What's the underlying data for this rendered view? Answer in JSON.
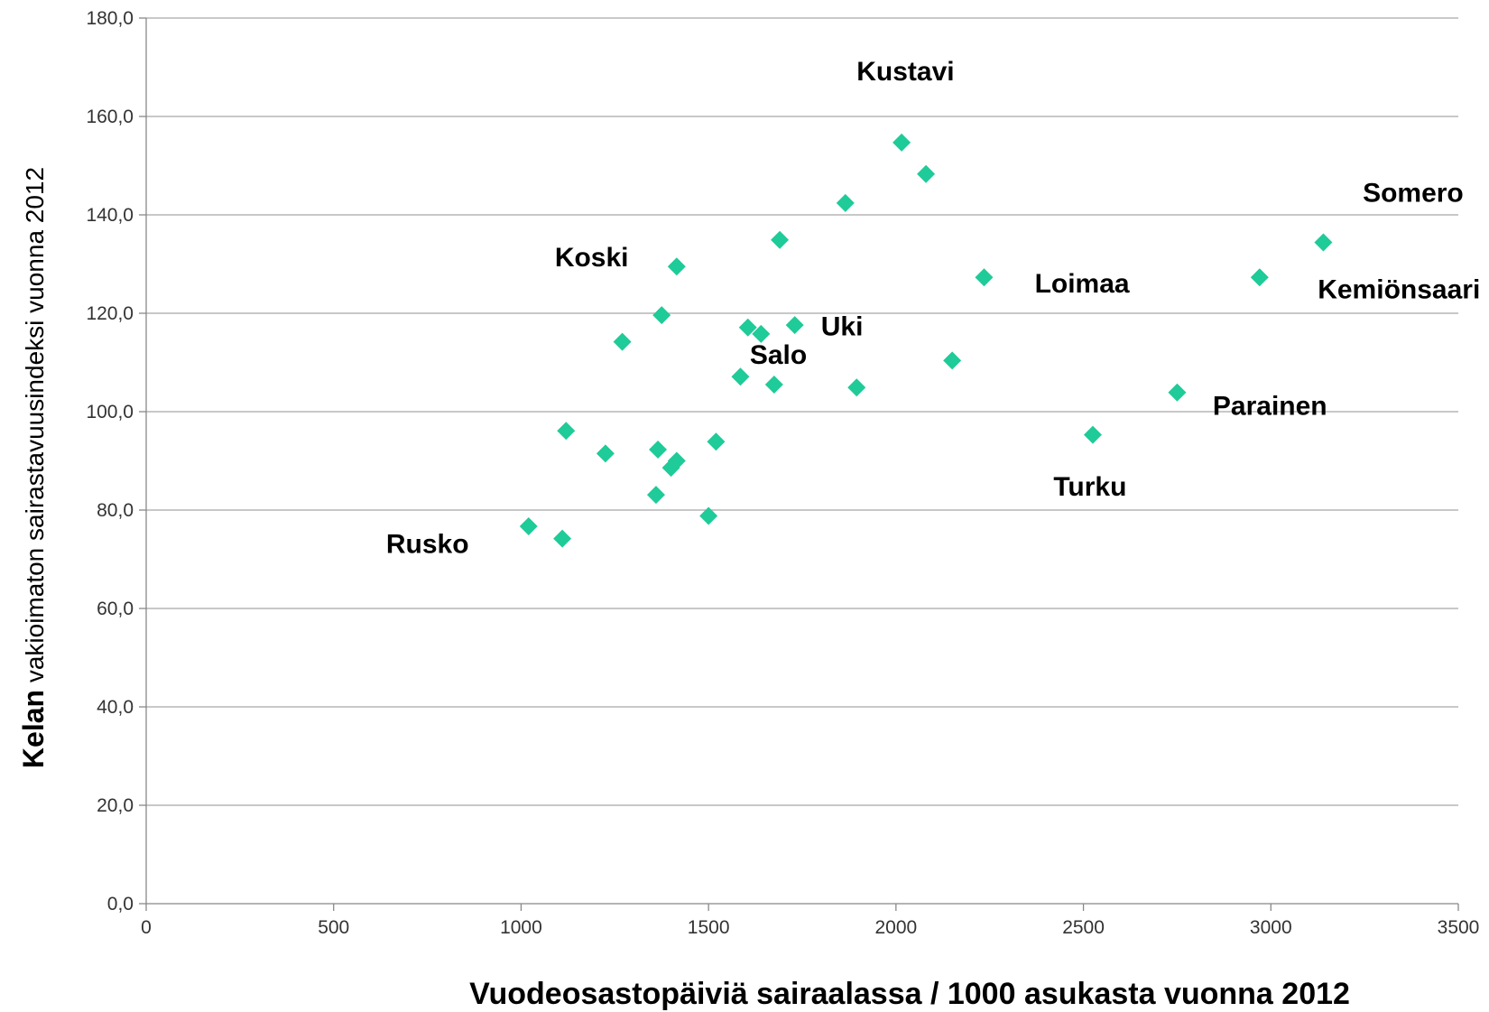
{
  "chart_data": {
    "type": "scatter",
    "xlabel": "Vuodeosastopäiviä sairaalassa / 1000 asukasta vuonna 2012",
    "ylabel_bold": "Kelan",
    "ylabel_rest": " vakioimaton sairastavuusindeksi vuonna 2012",
    "xlim": [
      0,
      3500
    ],
    "ylim": [
      0,
      180
    ],
    "x_ticks": [
      0,
      500,
      1000,
      1500,
      2000,
      2500,
      3000,
      3500
    ],
    "y_ticks": [
      0,
      20,
      40,
      60,
      80,
      100,
      120,
      140,
      160,
      180
    ],
    "x_tick_labels": [
      "0",
      "500",
      "1000",
      "1500",
      "2000",
      "2500",
      "3000",
      "3500"
    ],
    "y_tick_labels": [
      "0,0",
      "20,0",
      "40,0",
      "60,0",
      "80,0",
      "100,0",
      "120,0",
      "140,0",
      "160,0",
      "180,0"
    ],
    "grid": "horizontal",
    "marker": "diamond",
    "marker_color": "#1FCB98",
    "gridline_color": "#A6A6A6",
    "points": [
      {
        "x": 2015,
        "y": 154.7
      },
      {
        "x": 2080,
        "y": 148.3
      },
      {
        "x": 1865,
        "y": 142.4
      },
      {
        "x": 1690,
        "y": 134.9
      },
      {
        "x": 3140,
        "y": 134.4
      },
      {
        "x": 1415,
        "y": 129.5
      },
      {
        "x": 2235,
        "y": 127.3
      },
      {
        "x": 2970,
        "y": 127.3
      },
      {
        "x": 1375,
        "y": 119.6
      },
      {
        "x": 1605,
        "y": 117.1
      },
      {
        "x": 1730,
        "y": 117.6
      },
      {
        "x": 1640,
        "y": 115.8
      },
      {
        "x": 1270,
        "y": 114.2
      },
      {
        "x": 2150,
        "y": 110.4
      },
      {
        "x": 1585,
        "y": 107.1
      },
      {
        "x": 1675,
        "y": 105.5
      },
      {
        "x": 1895,
        "y": 104.9
      },
      {
        "x": 2750,
        "y": 103.9
      },
      {
        "x": 1120,
        "y": 96.1
      },
      {
        "x": 2525,
        "y": 95.3
      },
      {
        "x": 1520,
        "y": 93.9
      },
      {
        "x": 1365,
        "y": 92.3
      },
      {
        "x": 1225,
        "y": 91.5
      },
      {
        "x": 1415,
        "y": 90.0
      },
      {
        "x": 1400,
        "y": 88.6
      },
      {
        "x": 1360,
        "y": 83.1
      },
      {
        "x": 1500,
        "y": 78.8
      },
      {
        "x": 1020,
        "y": 76.7
      },
      {
        "x": 1110,
        "y": 74.2
      }
    ],
    "annotations": [
      {
        "text": "Kustavi",
        "x": 1895,
        "y": 167.3,
        "anchor": "start"
      },
      {
        "text": "Somero",
        "x": 3245,
        "y": 142.7,
        "anchor": "start"
      },
      {
        "text": "Koski",
        "x": 1090,
        "y": 129.5,
        "anchor": "start"
      },
      {
        "text": "Loimaa",
        "x": 2370,
        "y": 124.2,
        "anchor": "start"
      },
      {
        "text": "Kemiönsaari",
        "x": 3125,
        "y": 123.0,
        "anchor": "start"
      },
      {
        "text": "Uki",
        "x": 1800,
        "y": 115.5,
        "anchor": "start"
      },
      {
        "text": "Salo",
        "x": 1610,
        "y": 109.7,
        "anchor": "start"
      },
      {
        "text": "Parainen",
        "x": 2845,
        "y": 99.4,
        "anchor": "start"
      },
      {
        "text": "Turku",
        "x": 2420,
        "y": 82.9,
        "anchor": "start"
      },
      {
        "text": "Rusko",
        "x": 640,
        "y": 71.3,
        "anchor": "start"
      }
    ]
  }
}
